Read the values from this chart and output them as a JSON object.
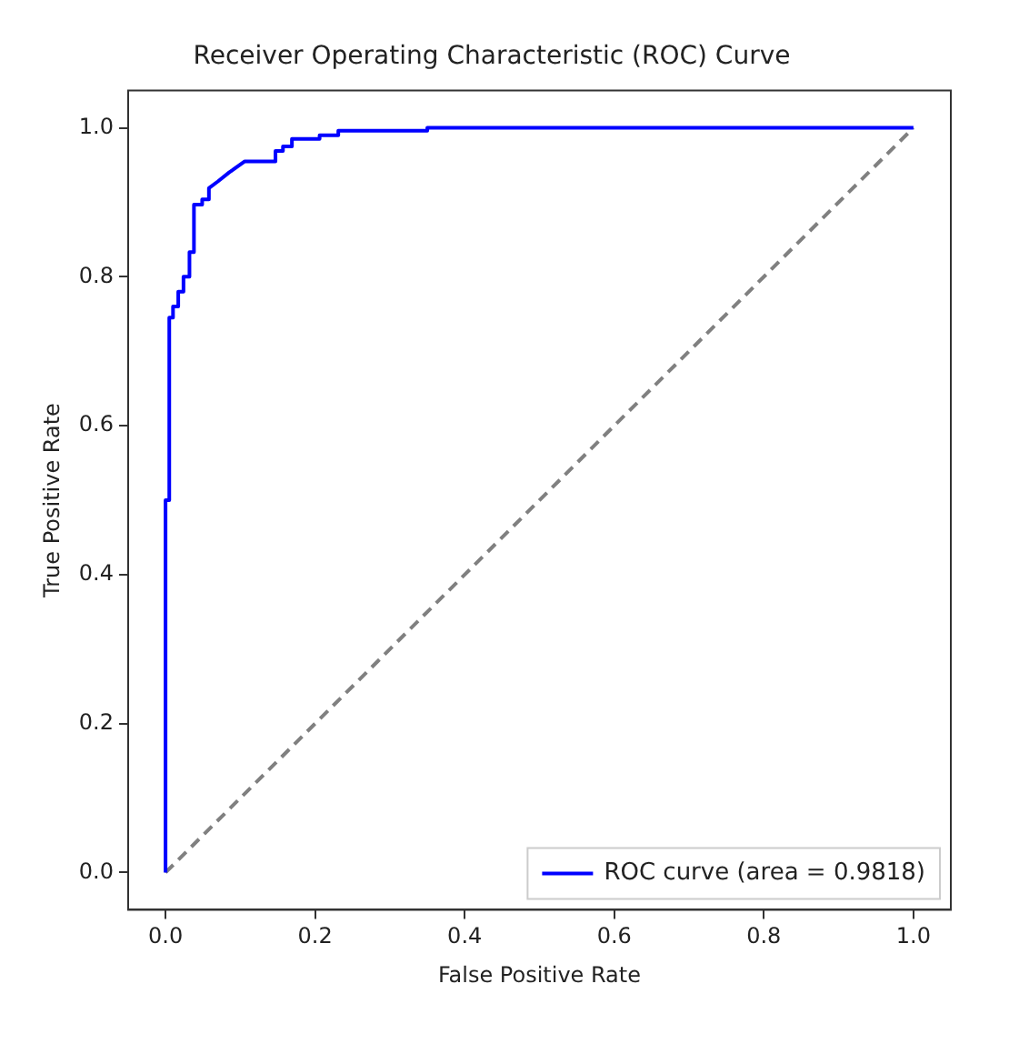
{
  "chart_data": {
    "type": "line",
    "title": "Receiver Operating Characteristic (ROC) Curve",
    "xlabel": "False Positive Rate",
    "ylabel": "True Positive Rate",
    "xlim": [
      -0.05,
      1.05
    ],
    "ylim": [
      -0.05,
      1.05
    ],
    "xticks": [
      {
        "value": 0,
        "label": "0.0"
      },
      {
        "value": 0.2,
        "label": "0.2"
      },
      {
        "value": 0.4,
        "label": "0.4"
      },
      {
        "value": 0.6,
        "label": "0.6"
      },
      {
        "value": 0.8,
        "label": "0.8"
      },
      {
        "value": 1,
        "label": "1.0"
      }
    ],
    "yticks": [
      {
        "value": 0,
        "label": "0.0"
      },
      {
        "value": 0.2,
        "label": "0.2"
      },
      {
        "value": 0.4,
        "label": "0.4"
      },
      {
        "value": 0.6,
        "label": "0.6"
      },
      {
        "value": 0.8,
        "label": "0.8"
      },
      {
        "value": 1,
        "label": "1.0"
      }
    ],
    "grid": false,
    "legend": "bottom right",
    "marker": "none",
    "series": [
      {
        "name": "ROC curve (area = 0.9818)",
        "color": "#0000ff",
        "line_style": "solid",
        "x": [
          0,
          0,
          0.005,
          0.005,
          0.01,
          0.01,
          0.017,
          0.017,
          0.024,
          0.024,
          0.032,
          0.032,
          0.038,
          0.038,
          0.049,
          0.049,
          0.058,
          0.058,
          0.07,
          0.085,
          0.106,
          0.147,
          0.147,
          0.157,
          0.157,
          0.169,
          0.169,
          0.206,
          0.206,
          0.231,
          0.231,
          0.35,
          0.35,
          1
        ],
        "values": [
          0,
          0.5,
          0.5,
          0.745,
          0.745,
          0.76,
          0.76,
          0.78,
          0.78,
          0.8,
          0.8,
          0.833,
          0.833,
          0.897,
          0.897,
          0.904,
          0.904,
          0.919,
          0.928,
          0.94,
          0.955,
          0.955,
          0.969,
          0.969,
          0.975,
          0.975,
          0.985,
          0.985,
          0.99,
          0.99,
          0.996,
          0.996,
          1,
          1
        ]
      },
      {
        "color": "#808080",
        "line_style": "dashed",
        "x": [
          0,
          1
        ],
        "values": [
          0,
          1
        ]
      }
    ]
  }
}
